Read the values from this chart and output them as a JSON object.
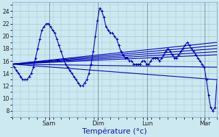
{
  "background_color": "#cce8f0",
  "line_color": "#0000bb",
  "marker": "+",
  "markersize": 3,
  "linewidth": 0.8,
  "xlabel": "Température (°c)",
  "xlabel_fontsize": 8,
  "yticks": [
    8,
    10,
    12,
    14,
    16,
    18,
    20,
    22,
    24
  ],
  "ylim": [
    7.0,
    25.5
  ],
  "xlim": [
    0,
    100
  ],
  "xtick_positions": [
    18,
    42,
    66,
    94
  ],
  "xtick_labels": [
    "Sam",
    "Dim",
    "Lun",
    "Mar"
  ],
  "grid_color": "#99bbcc",
  "grid_linewidth": 0.4,
  "detail_markevery": 1,
  "straight_line_endpoints": [
    [
      15.5,
      13.0
    ],
    [
      15.5,
      15.0
    ],
    [
      15.5,
      17.0
    ],
    [
      15.5,
      17.5
    ],
    [
      15.5,
      18.0
    ],
    [
      15.5,
      18.5
    ],
    [
      15.5,
      19.0
    ]
  ],
  "detail_curve": [
    15.5,
    15.0,
    14.5,
    14.0,
    13.5,
    13.0,
    13.0,
    13.0,
    13.5,
    14.0,
    15.0,
    16.5,
    18.0,
    19.5,
    21.0,
    21.5,
    22.0,
    22.0,
    21.5,
    21.0,
    20.5,
    19.5,
    18.5,
    17.5,
    16.5,
    15.5,
    15.0,
    14.5,
    14.0,
    13.5,
    13.0,
    12.5,
    12.0,
    12.0,
    12.5,
    13.0,
    14.0,
    15.5,
    17.5,
    20.0,
    22.5,
    24.5,
    24.0,
    23.0,
    21.5,
    21.0,
    20.5,
    20.5,
    20.0,
    19.5,
    18.5,
    17.5,
    17.0,
    16.5,
    16.5,
    16.0,
    16.0,
    15.5,
    15.5,
    15.5,
    15.5,
    16.0,
    16.0,
    15.5,
    15.5,
    16.0,
    16.5,
    16.5,
    16.5,
    16.0,
    16.5,
    17.0,
    17.5,
    18.0,
    17.5,
    17.0,
    16.5,
    16.5,
    17.0,
    17.5,
    18.0,
    18.5,
    19.0,
    18.5,
    18.0,
    17.5,
    17.0,
    16.5,
    16.0,
    15.5,
    15.0,
    13.0,
    10.5,
    8.5,
    8.0,
    8.5,
    13.0
  ]
}
